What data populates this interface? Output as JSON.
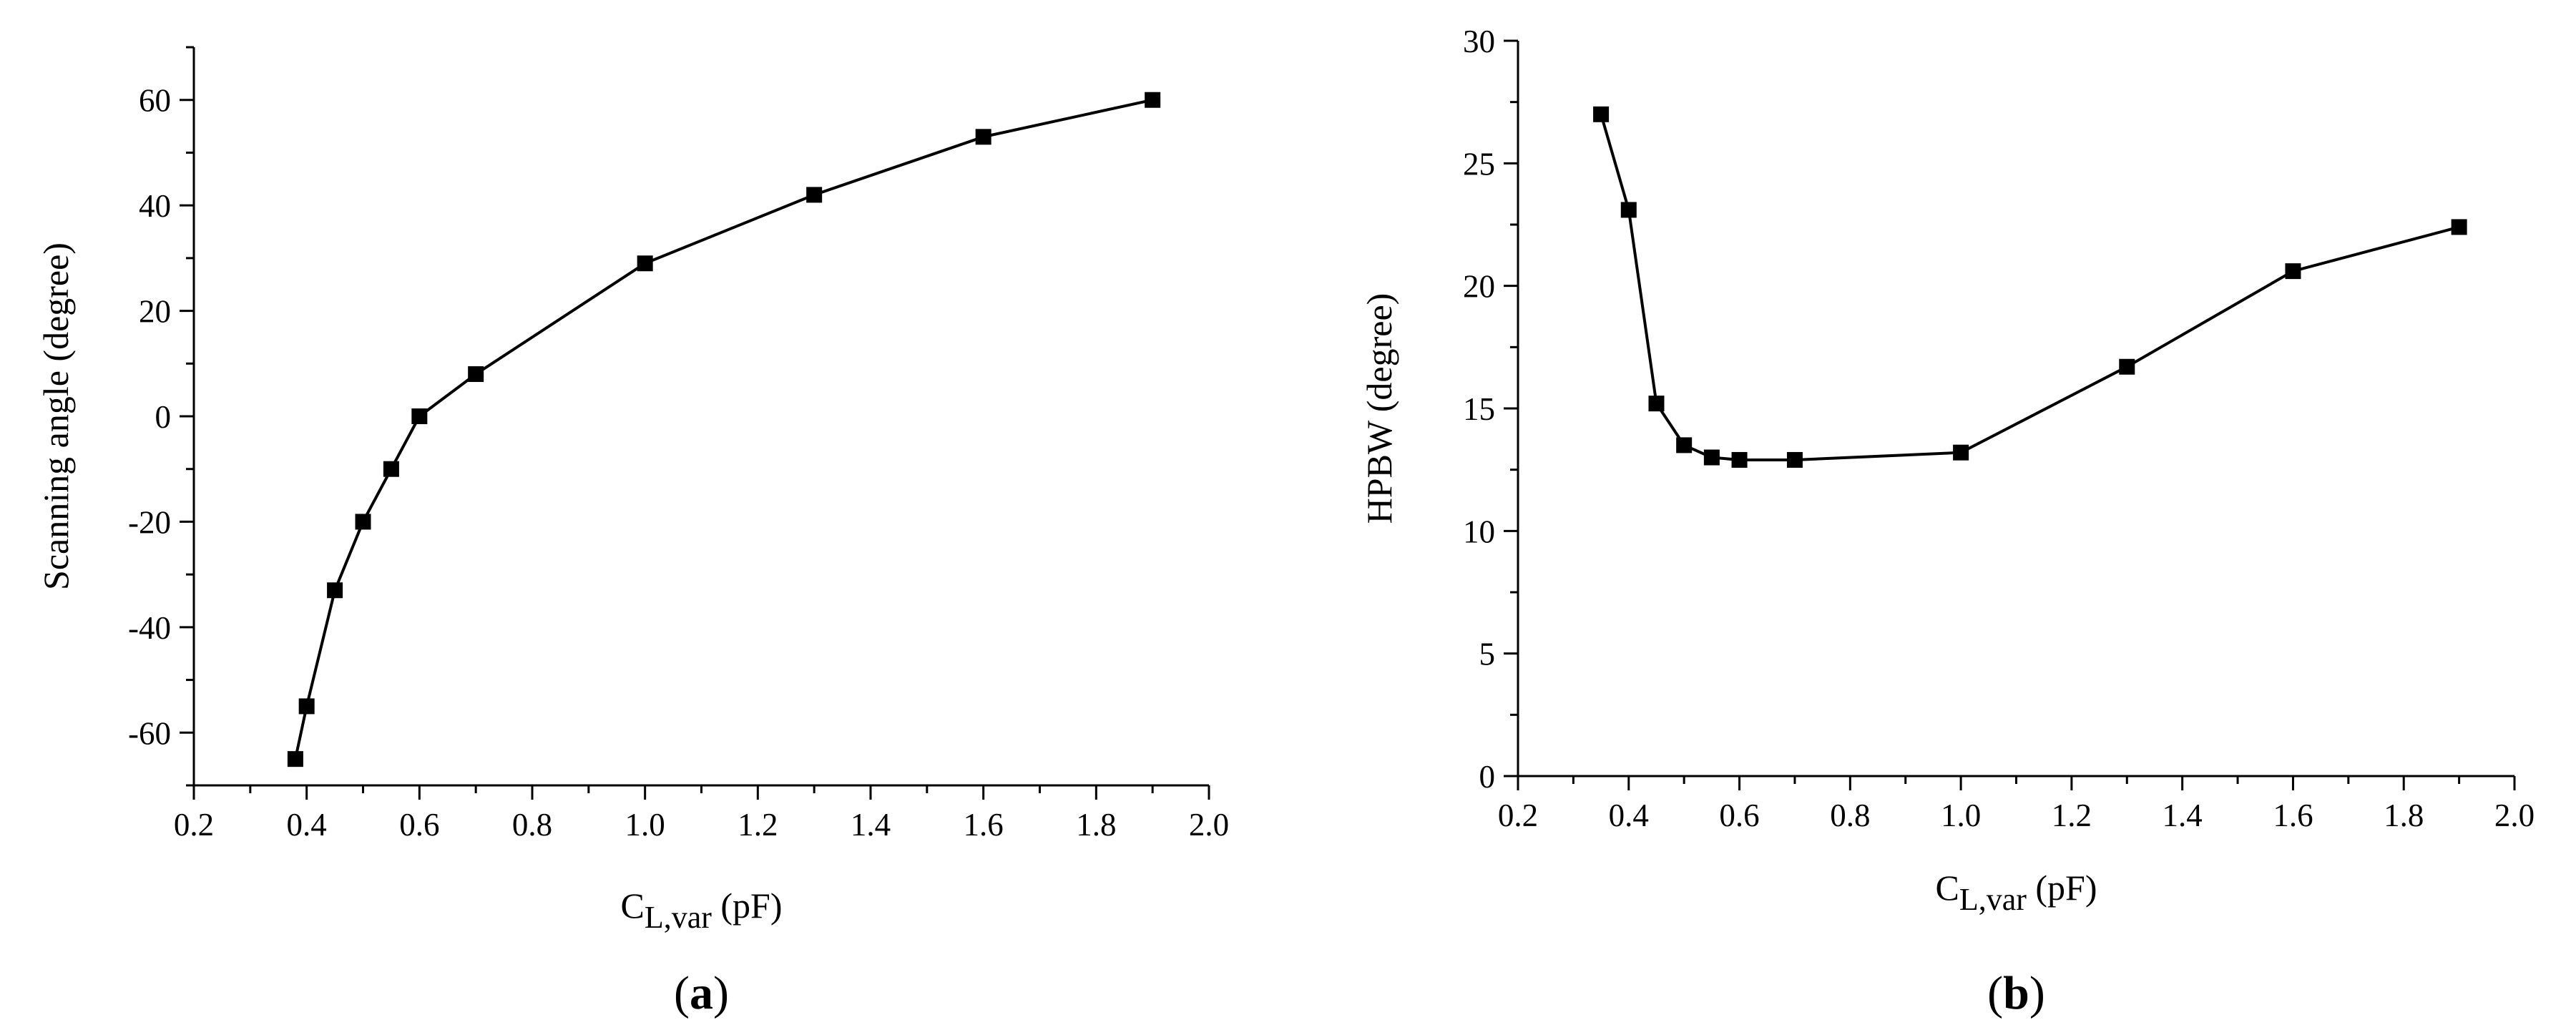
{
  "chart_data": [
    {
      "type": "line",
      "panel_label": "a",
      "xlabel": {
        "main": "C",
        "sub": "L,var",
        "unit": " (pF)"
      },
      "ylabel": "Scanning angle (degree)",
      "xlim": [
        0.2,
        2.0
      ],
      "ylim": [
        -70,
        70
      ],
      "xticks": [
        0.2,
        0.4,
        0.6,
        0.8,
        1.0,
        1.2,
        1.4,
        1.6,
        1.8,
        2.0
      ],
      "xtick_labels": [
        "0.2",
        "0.4",
        "0.6",
        "0.8",
        "1.0",
        "1.2",
        "1.4",
        "1.6",
        "1.8",
        "2.0"
      ],
      "yticks": [
        -60,
        -40,
        -20,
        0,
        20,
        40,
        60
      ],
      "ytick_labels": [
        "-60",
        "-40",
        "-20",
        "0",
        "20",
        "40",
        "60"
      ],
      "grid": false,
      "series": [
        {
          "name": "Scanning angle",
          "x": [
            0.38,
            0.4,
            0.45,
            0.5,
            0.55,
            0.6,
            0.7,
            1.0,
            1.3,
            1.6,
            1.9
          ],
          "y": [
            -65,
            -55,
            -33,
            -20,
            -10,
            0,
            8,
            29,
            42,
            53,
            60
          ]
        }
      ]
    },
    {
      "type": "line",
      "panel_label": "b",
      "xlabel": {
        "main": "C",
        "sub": "L,var",
        "unit": " (pF)"
      },
      "ylabel": "HPBW (degree)",
      "xlim": [
        0.2,
        2.0
      ],
      "ylim": [
        0,
        30
      ],
      "xticks": [
        0.2,
        0.4,
        0.6,
        0.8,
        1.0,
        1.2,
        1.4,
        1.6,
        1.8,
        2.0
      ],
      "xtick_labels": [
        "0.2",
        "0.4",
        "0.6",
        "0.8",
        "1.0",
        "1.2",
        "1.4",
        "1.6",
        "1.8",
        "2.0"
      ],
      "yticks": [
        0,
        5,
        10,
        15,
        20,
        25,
        30
      ],
      "ytick_labels": [
        "0",
        "5",
        "10",
        "15",
        "20",
        "25",
        "30"
      ],
      "grid": false,
      "series": [
        {
          "name": "HPBW",
          "x": [
            0.35,
            0.4,
            0.45,
            0.5,
            0.55,
            0.6,
            0.7,
            1.0,
            1.3,
            1.6,
            1.9
          ],
          "y": [
            27,
            23.1,
            15.2,
            13.5,
            13,
            12.9,
            12.9,
            13.2,
            16.7,
            20.6,
            22.4
          ]
        }
      ]
    }
  ]
}
